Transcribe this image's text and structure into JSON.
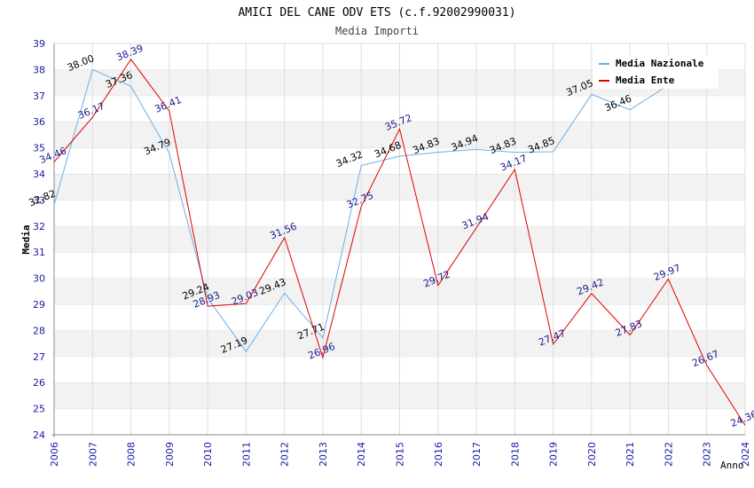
{
  "chart_data": {
    "type": "line",
    "title": "AMICI DEL CANE ODV ETS (c.f.92002990031)",
    "subtitle": "Media Importi",
    "xlabel": "Anno",
    "ylabel": "Media",
    "ylim": [
      24,
      39
    ],
    "yticks": [
      "24",
      "25",
      "26",
      "27",
      "28",
      "29",
      "30",
      "31",
      "32",
      "33",
      "34",
      "35",
      "36",
      "37",
      "38",
      "39"
    ],
    "x": [
      "2006",
      "2007",
      "2008",
      "2009",
      "2010",
      "2011",
      "2012",
      "2013",
      "2014",
      "2015",
      "2016",
      "2017",
      "2018",
      "2019",
      "2020",
      "2021",
      "2022",
      "2023",
      "2024"
    ],
    "grid": true,
    "legend_position": "top-right",
    "series": [
      {
        "name": "Media Nazionale",
        "color": "#6aaee8",
        "label_color": "#000000",
        "values": [
          32.82,
          38.0,
          37.36,
          34.79,
          29.24,
          27.19,
          29.43,
          27.71,
          34.32,
          34.68,
          34.83,
          34.94,
          34.83,
          34.85,
          37.05,
          36.46,
          37.4,
          null,
          null
        ],
        "labels": [
          "32.82",
          "38.00",
          "37.36",
          "34.79",
          "29.24",
          "27.19",
          "29.43",
          "27.71",
          "34.32",
          "34.68",
          "34.83",
          "34.94",
          "34.83",
          "34.85",
          "37.05",
          "36.46",
          "",
          "",
          ""
        ]
      },
      {
        "name": "Media Ente",
        "color": "#e00000",
        "label_color": "#1a1a8c",
        "values": [
          34.46,
          36.17,
          38.39,
          36.41,
          28.93,
          29.03,
          31.56,
          26.96,
          32.75,
          35.72,
          29.72,
          31.94,
          34.17,
          27.47,
          29.42,
          27.83,
          29.97,
          26.67,
          24.36
        ],
        "labels": [
          "34.46",
          "36.17",
          "38.39",
          "36.41",
          "28.93",
          "29.03",
          "31.56",
          "26.96",
          "32.75",
          "35.72",
          "29.72",
          "31.94",
          "34.17",
          "27.47",
          "29.42",
          "27.83",
          "29.97",
          "26.67",
          "24.36"
        ]
      }
    ]
  }
}
